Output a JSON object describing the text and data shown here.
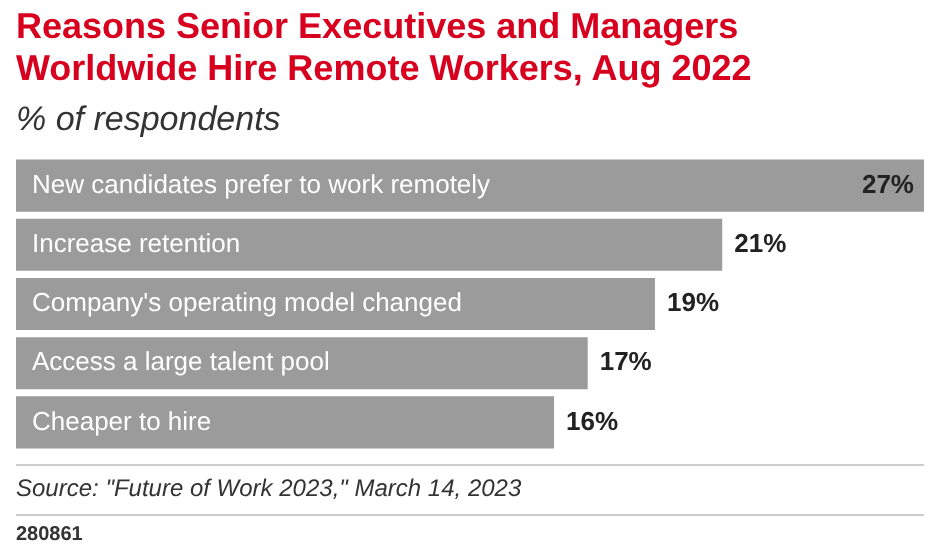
{
  "chart_data": {
    "type": "bar",
    "orientation": "horizontal",
    "title": "Reasons Senior Executives and Managers Worldwide Hire Remote Workers, Aug 2022",
    "subtitle": "% of respondents",
    "categories": [
      "New candidates prefer to work remotely",
      "Increase retention",
      "Company's operating model changed",
      "Access a large talent pool",
      "Cheaper to hire"
    ],
    "values": [
      27,
      21,
      19,
      17,
      16
    ],
    "value_labels": [
      "27%",
      "21%",
      "19%",
      "17%",
      "16%"
    ],
    "color": "#9b9b9b",
    "grid": false,
    "legend": false,
    "annotations": [
      "Source: \"Future of Work 2023,\" March 14, 2023",
      "280861"
    ]
  }
}
